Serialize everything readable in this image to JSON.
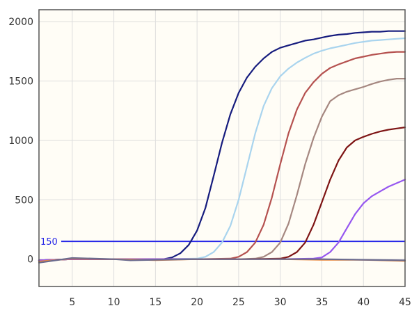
{
  "chart_data": {
    "type": "line",
    "title": "",
    "xlabel": "",
    "ylabel": "",
    "xlim": [
      1,
      45
    ],
    "ylim": [
      -230,
      2100
    ],
    "x_ticks": [
      "5",
      "10",
      "15",
      "20",
      "25",
      "30",
      "35",
      "40",
      "45"
    ],
    "y_ticks": [
      "0",
      "500",
      "1000",
      "1500",
      "2000"
    ],
    "grid": true,
    "legend": "none",
    "colors": {
      "plot_background": "#fffdf6",
      "grid": "#dddddd",
      "frame": "#555555",
      "threshold": "#2626e8"
    },
    "threshold": {
      "value": 150,
      "label": "150"
    },
    "series": [
      {
        "color": "#161c7e",
        "x": [
          1,
          5,
          10,
          15,
          16,
          17,
          18,
          19,
          20,
          21,
          22,
          23,
          24,
          25,
          26,
          27,
          28,
          29,
          30,
          31,
          32,
          33,
          34,
          35,
          36,
          37,
          38,
          39,
          40,
          41,
          42,
          43,
          44,
          45
        ],
        "y": [
          -10,
          0,
          0,
          0,
          0,
          15,
          50,
          120,
          240,
          430,
          700,
          980,
          1220,
          1400,
          1530,
          1620,
          1690,
          1745,
          1780,
          1800,
          1820,
          1840,
          1850,
          1865,
          1880,
          1890,
          1895,
          1905,
          1910,
          1915,
          1915,
          1920,
          1920,
          1920
        ]
      },
      {
        "color": "#a9d4ee",
        "x": [
          1,
          5,
          10,
          15,
          20,
          21,
          22,
          23,
          24,
          25,
          26,
          27,
          28,
          29,
          30,
          31,
          32,
          33,
          34,
          35,
          36,
          37,
          38,
          39,
          40,
          41,
          42,
          43,
          44,
          45
        ],
        "y": [
          -10,
          0,
          0,
          0,
          5,
          20,
          60,
          140,
          280,
          500,
          780,
          1060,
          1290,
          1440,
          1540,
          1605,
          1655,
          1695,
          1730,
          1755,
          1775,
          1790,
          1805,
          1820,
          1830,
          1840,
          1845,
          1850,
          1855,
          1860
        ]
      },
      {
        "color": "#b5514f",
        "x": [
          1,
          5,
          10,
          15,
          20,
          24,
          25,
          26,
          27,
          28,
          29,
          30,
          31,
          32,
          33,
          34,
          35,
          36,
          37,
          38,
          39,
          40,
          41,
          42,
          43,
          44,
          45
        ],
        "y": [
          -10,
          0,
          0,
          0,
          0,
          5,
          20,
          60,
          140,
          290,
          520,
          800,
          1060,
          1260,
          1400,
          1490,
          1560,
          1610,
          1640,
          1665,
          1690,
          1705,
          1720,
          1730,
          1740,
          1745,
          1745
        ]
      },
      {
        "color": "#a58780",
        "x": [
          1,
          5,
          10,
          15,
          20,
          25,
          27,
          28,
          29,
          30,
          31,
          32,
          33,
          34,
          35,
          36,
          37,
          38,
          39,
          40,
          41,
          42,
          43,
          44,
          45
        ],
        "y": [
          -10,
          0,
          0,
          0,
          0,
          0,
          5,
          20,
          60,
          140,
          300,
          540,
          800,
          1020,
          1200,
          1330,
          1380,
          1410,
          1430,
          1450,
          1475,
          1495,
          1510,
          1520,
          1520
        ]
      },
      {
        "color": "#7e1414",
        "x": [
          1,
          5,
          10,
          15,
          20,
          25,
          30,
          31,
          32,
          33,
          34,
          35,
          36,
          37,
          38,
          39,
          40,
          41,
          42,
          43,
          44,
          45
        ],
        "y": [
          -10,
          0,
          0,
          0,
          0,
          0,
          5,
          20,
          60,
          140,
          290,
          480,
          670,
          830,
          940,
          1000,
          1030,
          1055,
          1075,
          1090,
          1100,
          1110
        ]
      },
      {
        "color": "#9657f0",
        "x": [
          1,
          5,
          10,
          15,
          20,
          25,
          30,
          34,
          35,
          36,
          37,
          38,
          39,
          40,
          41,
          42,
          43,
          44,
          45
        ],
        "y": [
          -10,
          0,
          0,
          0,
          0,
          0,
          0,
          5,
          15,
          60,
          140,
          260,
          380,
          470,
          530,
          570,
          610,
          640,
          670
        ]
      },
      {
        "color": "#e8853a",
        "x": [
          1,
          5,
          10,
          15,
          20,
          25,
          30,
          35,
          40,
          45
        ],
        "y": [
          -20,
          5,
          0,
          -8,
          0,
          0,
          0,
          -5,
          -5,
          -15
        ]
      },
      {
        "color": "#6b6b8e",
        "x": [
          1,
          5,
          10,
          12,
          15,
          20,
          25,
          30,
          35,
          40,
          45
        ],
        "y": [
          -30,
          10,
          0,
          -10,
          -5,
          0,
          0,
          0,
          0,
          -5,
          -10
        ]
      }
    ]
  }
}
